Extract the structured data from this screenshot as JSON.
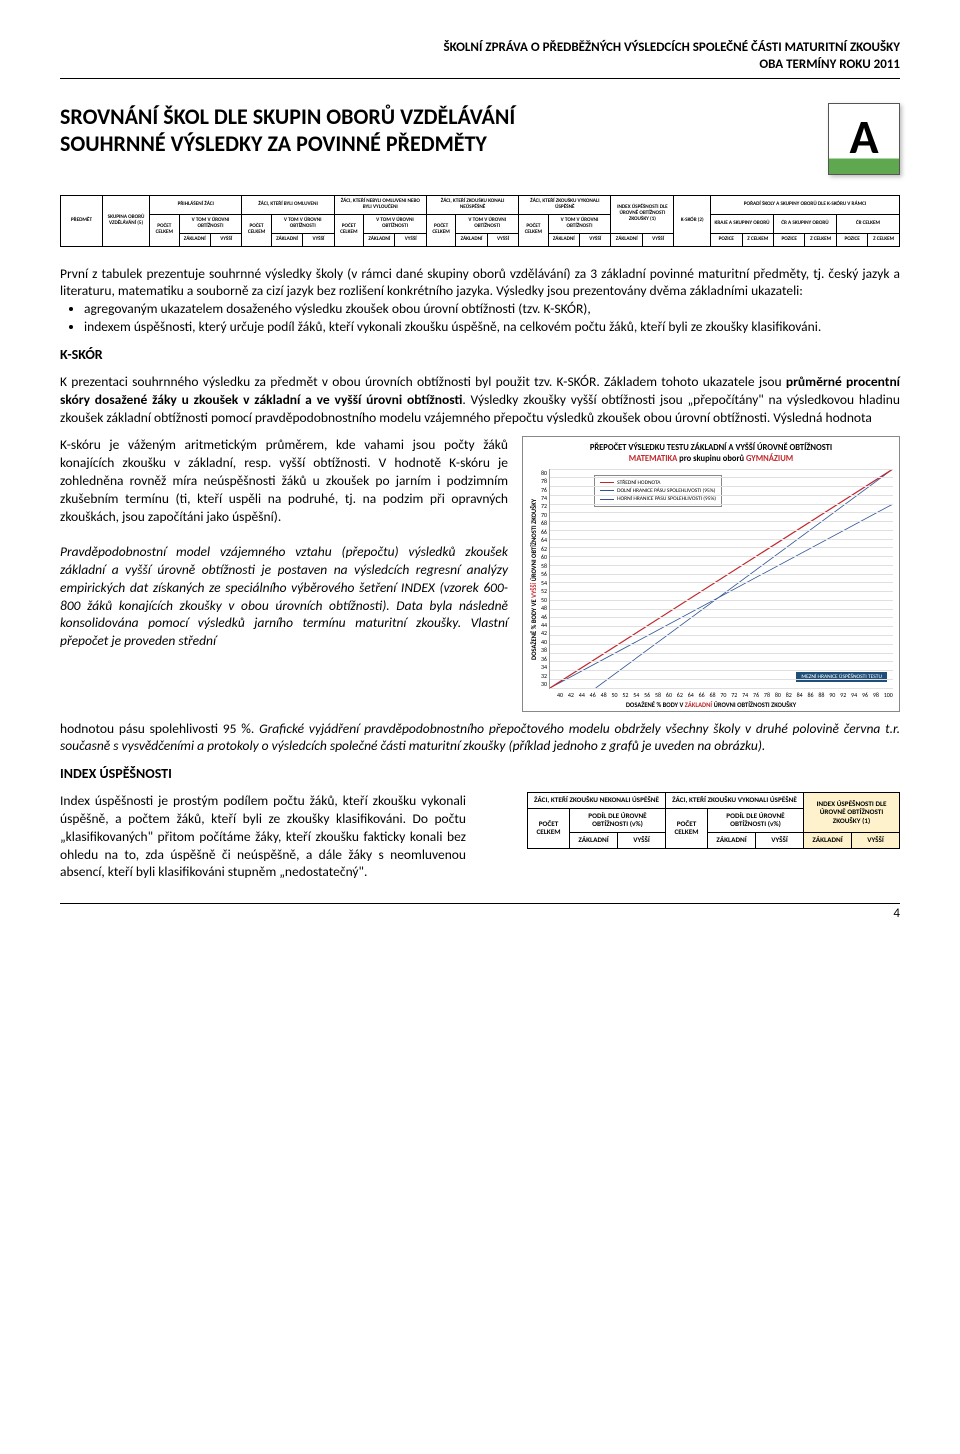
{
  "header": {
    "line1": "ŠKOLNÍ ZPRÁVA O PŘEDBĚŽNÝCH VÝSLEDCÍCH SPOLEČNÉ ČÁSTI MATURITNÍ ZKOUŠKY",
    "line2": "OBA TERMÍNY ROKU 2011"
  },
  "title": {
    "line1": "SROVNÁNÍ ŠKOL DLE SKUPIN OBORŮ VZDĚLÁVÁNÍ",
    "line2": "SOUHRNNÉ VÝSLEDKY ZA POVINNÉ PŘEDMĚTY",
    "badge": "A"
  },
  "wide_table": {
    "groups": [
      {
        "label": "PŘEDMĚT",
        "rowspan": 3
      },
      {
        "label": "SKUPINA OBORŮ VZDĚLÁVÁNÍ (5)",
        "rowspan": 3
      },
      {
        "label": "PŘIHLÁŠENÍ ŽÁCI",
        "sub": true
      },
      {
        "label": "ŽÁCI, KTEŘÍ BYLI OMLUVENI",
        "sub": true
      },
      {
        "label": "ŽÁCI, KTEŘÍ NEBYLI OMLUVENI NEBO BYLI VYLOUČENI",
        "sub": true
      },
      {
        "label": "ŽÁCI, KTEŘÍ ZKOUŠKU KONALI NEÚSPĚŠNĚ",
        "sub": true
      },
      {
        "label": "ŽÁCI, KTEŘÍ ZKOUŠKU VYKONALI ÚSPĚŠNĚ",
        "sub": true
      },
      {
        "label": "INDEX ÚSPĚŠNOSTI DLE ÚROVNĚ OBTÍŽNOSTI ZKOUŠKY (1)"
      },
      {
        "label": "K-SKÓR (2)"
      },
      {
        "label": "POŘADÍ ŠKOLY A SKUPINY OBORŮ DLE K-SKÓRU V RÁMCI"
      }
    ],
    "sub_pocet": "POČET CELKEM",
    "sub_vtom": "V TOM V ÚROVNI OBTÍŽNOSTI",
    "sub_zak": "ZÁKLADNÍ",
    "sub_vys": "VYŠŠÍ",
    "poradi_sub": [
      "KRAJE A SKUPINY OBORŮ",
      "ČR A SKUPINY OBORŮ",
      "ČR CELKEM"
    ],
    "poradi_leaf": [
      "POZICE",
      "Z CELKEM"
    ]
  },
  "para1": {
    "lead": "První z tabulek prezentuje souhrnné výsledky školy (v rámci dané skupiny oborů vzdělávání) za 3 základní povinné maturitní předměty, tj. český jazyk a literaturu, matematiku a souborně za cizí jazyk bez rozlišení konkrétního jazyka. Výsledky jsou prezentovány dvěma základními ukazateli:",
    "b1": "agregovaným ukazatelem dosaženého výsledku zkoušek obou úrovní obtížnosti (tzv. K-SKÓR),",
    "b2": "indexem úspěšnosti, který určuje podíl žáků, kteří vykonali zkoušku úspěšně, na celkovém počtu žáků, kteří byli ze zkoušky klasifikováni."
  },
  "kskor_title": "K-SKÓR",
  "para2": "K prezentaci souhrnného výsledku za předmět v obou úrovních obtížnosti byl použit tzv. K-SKÓR. Základem tohoto ukazatele jsou <b>průměrné procentní skóry dosažené žáky u zkoušek v základní a ve vyšší úrovni obtížnosti</b>. Výsledky zkoušky vyšší obtížnosti jsou „přepočítány\" na výsledkovou hladinu zkoušek základní obtížnosti pomocí pravděpodobnostního modelu vzájemného přepočtu výsledků zkoušek obou úrovní obtížnosti. Výsledná hodnota",
  "left_col": {
    "p1": "K-skóru je váženým aritmetickým průměrem, kde vahami jsou počty žáků konajících zkoušku v základní, resp. vyšší obtížnosti. V hodnotě K-skóru je zohledněna rovněž míra neúspěšnosti žáků u zkoušek po jarním i podzimním zkušebním termínu (ti, kteří uspěli na podruhé, tj. na podzim při opravných zkouškách, jsou započítáni jako úspěšní).",
    "p2": "Pravděpodobnostní model vzájemného vztahu (přepočtu) výsledků zkoušek základní a vyšší úrovně obtížnosti je postaven na výsledcích regresní analýzy empirických dat získaných ze speciálního výběrového šetření INDEX (vzorek 600-800 žáků konajících zkoušky v obou úrovních obtížnosti). Data byla následně konsolidována pomocí výsledků jarního termínu maturitní zkoušky. Vlastní přepočet je proveden střední"
  },
  "chart": {
    "title_l1": "PŘEPOČET VÝSLEDKU TESTU ZÁKLADNÍ A VYŠŠÍ ÚROVNĚ OBTÍŽNOSTI",
    "title_l2a": "MATEMATIKA",
    "title_l2b": " pro skupinu oborů ",
    "title_l2c": "GYMNÁZIUM",
    "y_label_a": "DOSAŽENÉ % BODY VE ",
    "y_label_b": "VYŠŠÍ",
    "y_label_c": " ÚROVNI OBTÍŽNOSTI ZKOUŠKY",
    "x_label_a": "DOSAŽENÉ % BODY V ",
    "x_label_b": "ZÁKLADNÍ",
    "x_label_c": " ÚROVNI OBTÍŽNOSTI ZKOUŠKY",
    "y_ticks": [
      80,
      78,
      76,
      74,
      72,
      70,
      68,
      66,
      64,
      62,
      60,
      58,
      56,
      54,
      52,
      50,
      48,
      46,
      44,
      42,
      40,
      38,
      36,
      34,
      32,
      30
    ],
    "x_ticks": [
      40,
      42,
      44,
      46,
      48,
      50,
      52,
      54,
      56,
      58,
      60,
      62,
      64,
      66,
      68,
      70,
      72,
      74,
      76,
      78,
      80,
      82,
      84,
      86,
      88,
      90,
      92,
      94,
      96,
      98,
      100
    ],
    "legend": {
      "l1": "STŘEDNÍ HODNOTA",
      "l2": "DOLNÍ HRANICE PÁSU SPOLEHLIVOSTI (95%)",
      "l3": "HORNÍ HRANICE PÁSU SPOLEHLIVOSTI (95%)"
    },
    "mezni": "MEZNÍ HRANICE ÚSPĚŠNOSTI TESTU",
    "colors": {
      "center": "#c0272d",
      "band": "#2f5597",
      "grid": "#e0e0e0",
      "mezni_bg": "#1f4e79"
    },
    "ylim": [
      30,
      80
    ],
    "xlim": [
      40,
      100
    ],
    "lines": {
      "center": [
        [
          40,
          30
        ],
        [
          100,
          80
        ]
      ],
      "lower": [
        [
          40,
          30
        ],
        [
          100,
          72
        ]
      ],
      "upper": [
        [
          48,
          30
        ],
        [
          100,
          80
        ]
      ]
    }
  },
  "para3": "hodnotou pásu spolehlivosti 95 %. <i>Grafické vyjádření pravděpodobnostního přepočtového modelu obdržely všechny školy v druhé polovině června t.r. současně s vysvědčeními a protokoly o výsledcích společné části maturitní zkoušky (příklad jednoho z grafů je uveden na obrázku).</i>",
  "index_title": "INDEX ÚSPĚŠNOSTI",
  "index_para": "Index úspěšnosti je prostým podílem počtu žáků, kteří zkoušku vykonali úspěšně, a počtem žáků, kteří byli ze zkoušky klasifikováni. Do počtu „klasifikovaných\" přitom počítáme žáky, kteří zkoušku fakticky konali bez ohledu na to, zda úspěšně či neúspěšně, a dále žáky s neomluvenou absencí, kteří byli klasifikováni stupněm „nedostatečný\".",
  "small_table": {
    "c1": "ŽÁCI, KTEŘÍ ZKOUŠKU NEKONALI ÚSPĚŠNĚ",
    "c2": "ŽÁCI, KTEŘÍ ZKOUŠKU VYKONALI ÚSPĚŠNĚ",
    "c3": "INDEX ÚSPĚŠNOSTI DLE ÚROVNĚ OBTÍŽNOSTI ZKOUŠKY (1)",
    "pocet": "POČET CELKEM",
    "podil": "PODÍL DLE ÚROVNĚ OBTÍŽNOSTI (v%)",
    "zak": "ZÁKLADNÍ",
    "vys": "VYŠŠÍ"
  },
  "page_num": "4"
}
